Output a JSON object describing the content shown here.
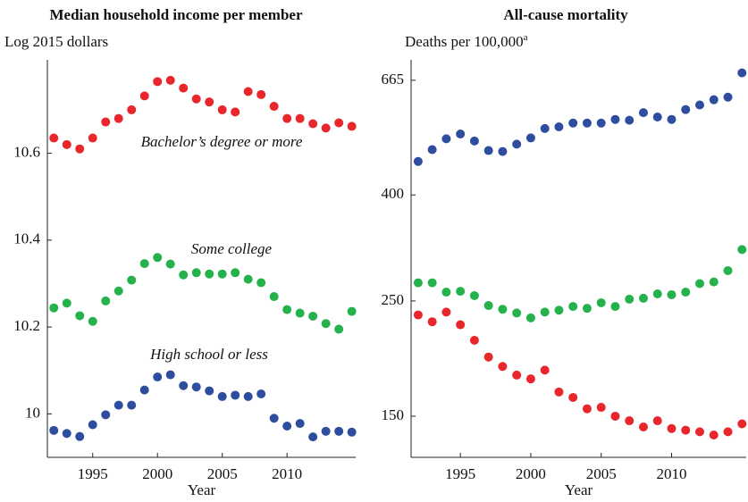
{
  "chart_data": [
    {
      "type": "scatter",
      "title": "Median household income per member",
      "subtitle": "Log 2015 dollars",
      "xlabel": "Year",
      "x": [
        1992,
        1993,
        1994,
        1995,
        1996,
        1997,
        1998,
        1999,
        2000,
        2001,
        2002,
        2003,
        2004,
        2005,
        2006,
        2007,
        2008,
        2009,
        2010,
        2011,
        2012,
        2013,
        2014,
        2015
      ],
      "xlim": [
        1991.5,
        2015.3
      ],
      "xticks": [
        1995,
        2000,
        2005,
        2010
      ],
      "ylim": [
        9.9,
        10.815
      ],
      "yticks": [
        10,
        10.2,
        10.4,
        10.6
      ],
      "series": [
        {
          "name": "Bachelor’s degree or more",
          "color": "#e8262b",
          "values": [
            10.635,
            10.62,
            10.61,
            10.635,
            10.672,
            10.68,
            10.7,
            10.732,
            10.765,
            10.768,
            10.75,
            10.725,
            10.718,
            10.7,
            10.695,
            10.742,
            10.735,
            10.708,
            10.68,
            10.68,
            10.668,
            10.658,
            10.67,
            10.662
          ]
        },
        {
          "name": "Some college",
          "color": "#25b14b",
          "values": [
            10.244,
            10.255,
            10.226,
            10.213,
            10.26,
            10.283,
            10.308,
            10.346,
            10.36,
            10.345,
            10.32,
            10.325,
            10.322,
            10.322,
            10.325,
            10.31,
            10.302,
            10.27,
            10.24,
            10.232,
            10.225,
            10.208,
            10.195,
            10.236
          ]
        },
        {
          "name": "High school or less",
          "color": "#2e4d9e",
          "values": [
            9.962,
            9.955,
            9.948,
            9.975,
            9.998,
            10.02,
            10.02,
            10.055,
            10.085,
            10.09,
            10.065,
            10.062,
            10.053,
            10.04,
            10.043,
            10.04,
            10.046,
            9.99,
            9.972,
            9.978,
            9.947,
            9.96,
            9.96,
            9.958
          ]
        }
      ]
    },
    {
      "type": "scatter",
      "title": "All-cause mortality",
      "subtitle": "Deaths per 100,000",
      "subtitle_note": "a",
      "xlabel": "Year",
      "log_scale": true,
      "x": [
        1992,
        1993,
        1994,
        1995,
        1996,
        1997,
        1998,
        1999,
        2000,
        2001,
        2002,
        2003,
        2004,
        2005,
        2006,
        2007,
        2008,
        2009,
        2010,
        2011,
        2012,
        2013,
        2014,
        2015
      ],
      "xlim": [
        1991.5,
        2015.3
      ],
      "xticks": [
        1995,
        2000,
        2005,
        2010
      ],
      "ylim": [
        125,
        728
      ],
      "yticks": [
        150,
        250,
        400,
        665
      ],
      "series": [
        {
          "color": "#2e4d9e",
          "values": [
            464,
            489,
            513,
            524,
            508,
            487,
            485,
            501,
            515,
            537,
            541,
            550,
            550,
            550,
            559,
            557,
            576,
            565,
            559,
            584,
            596,
            610,
            617,
            687
          ]
        },
        {
          "color": "#25b14b",
          "values": [
            271,
            271,
            260,
            261,
            256,
            245,
            241,
            237,
            232,
            238,
            240,
            244,
            242,
            248,
            244,
            252,
            253,
            258,
            257,
            260,
            270,
            272,
            286,
            314
          ]
        },
        {
          "color": "#e8262b",
          "values": [
            235,
            228,
            238,
            225,
            210,
            195,
            187,
            180,
            177,
            184,
            167,
            163,
            155,
            156,
            150,
            147,
            143,
            147,
            142,
            141,
            140,
            138,
            140,
            145
          ]
        }
      ]
    }
  ]
}
